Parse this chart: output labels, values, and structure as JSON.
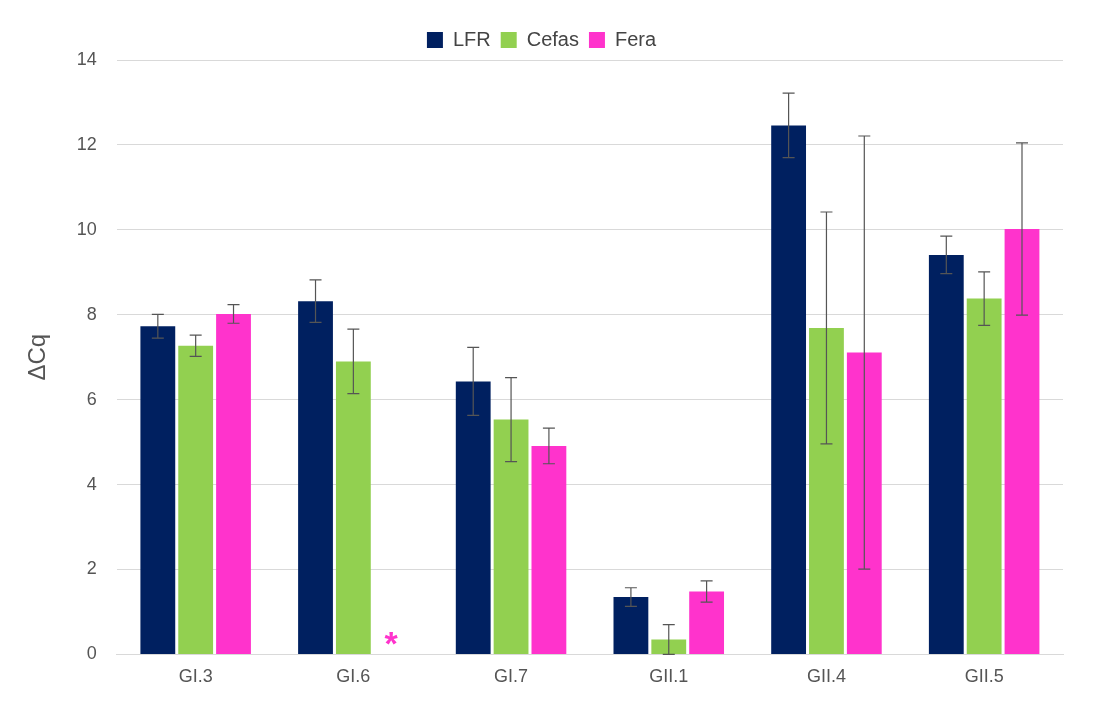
{
  "chart_data": {
    "type": "bar",
    "ylabel": "ΔCq",
    "categories": [
      "GI.3",
      "GI.6",
      "GI.7",
      "GII.1",
      "GII.4",
      "GII.5"
    ],
    "series": [
      {
        "name": "LFR",
        "color": "#002060",
        "values": [
          7.73,
          8.32,
          6.43,
          1.35,
          12.46,
          9.41
        ],
        "errors": [
          0.28,
          0.5,
          0.8,
          0.22,
          0.76,
          0.44
        ]
      },
      {
        "name": "Cefas",
        "color": "#92d050",
        "values": [
          7.27,
          6.9,
          5.53,
          0.35,
          7.69,
          8.38
        ],
        "errors": [
          0.25,
          0.76,
          0.99,
          0.35,
          2.73,
          0.63
        ]
      },
      {
        "name": "Fera",
        "color": "#ff33cc",
        "values": [
          8.02,
          null,
          4.91,
          1.48,
          7.11,
          10.02
        ],
        "errors": [
          0.22,
          null,
          0.42,
          0.25,
          5.1,
          2.03
        ]
      }
    ],
    "ylim": [
      0,
      14
    ],
    "yticks": [
      0,
      2,
      4,
      6,
      8,
      10,
      12,
      14
    ],
    "grid": "y",
    "legend": "top",
    "annotations": [
      "*"
    ]
  }
}
